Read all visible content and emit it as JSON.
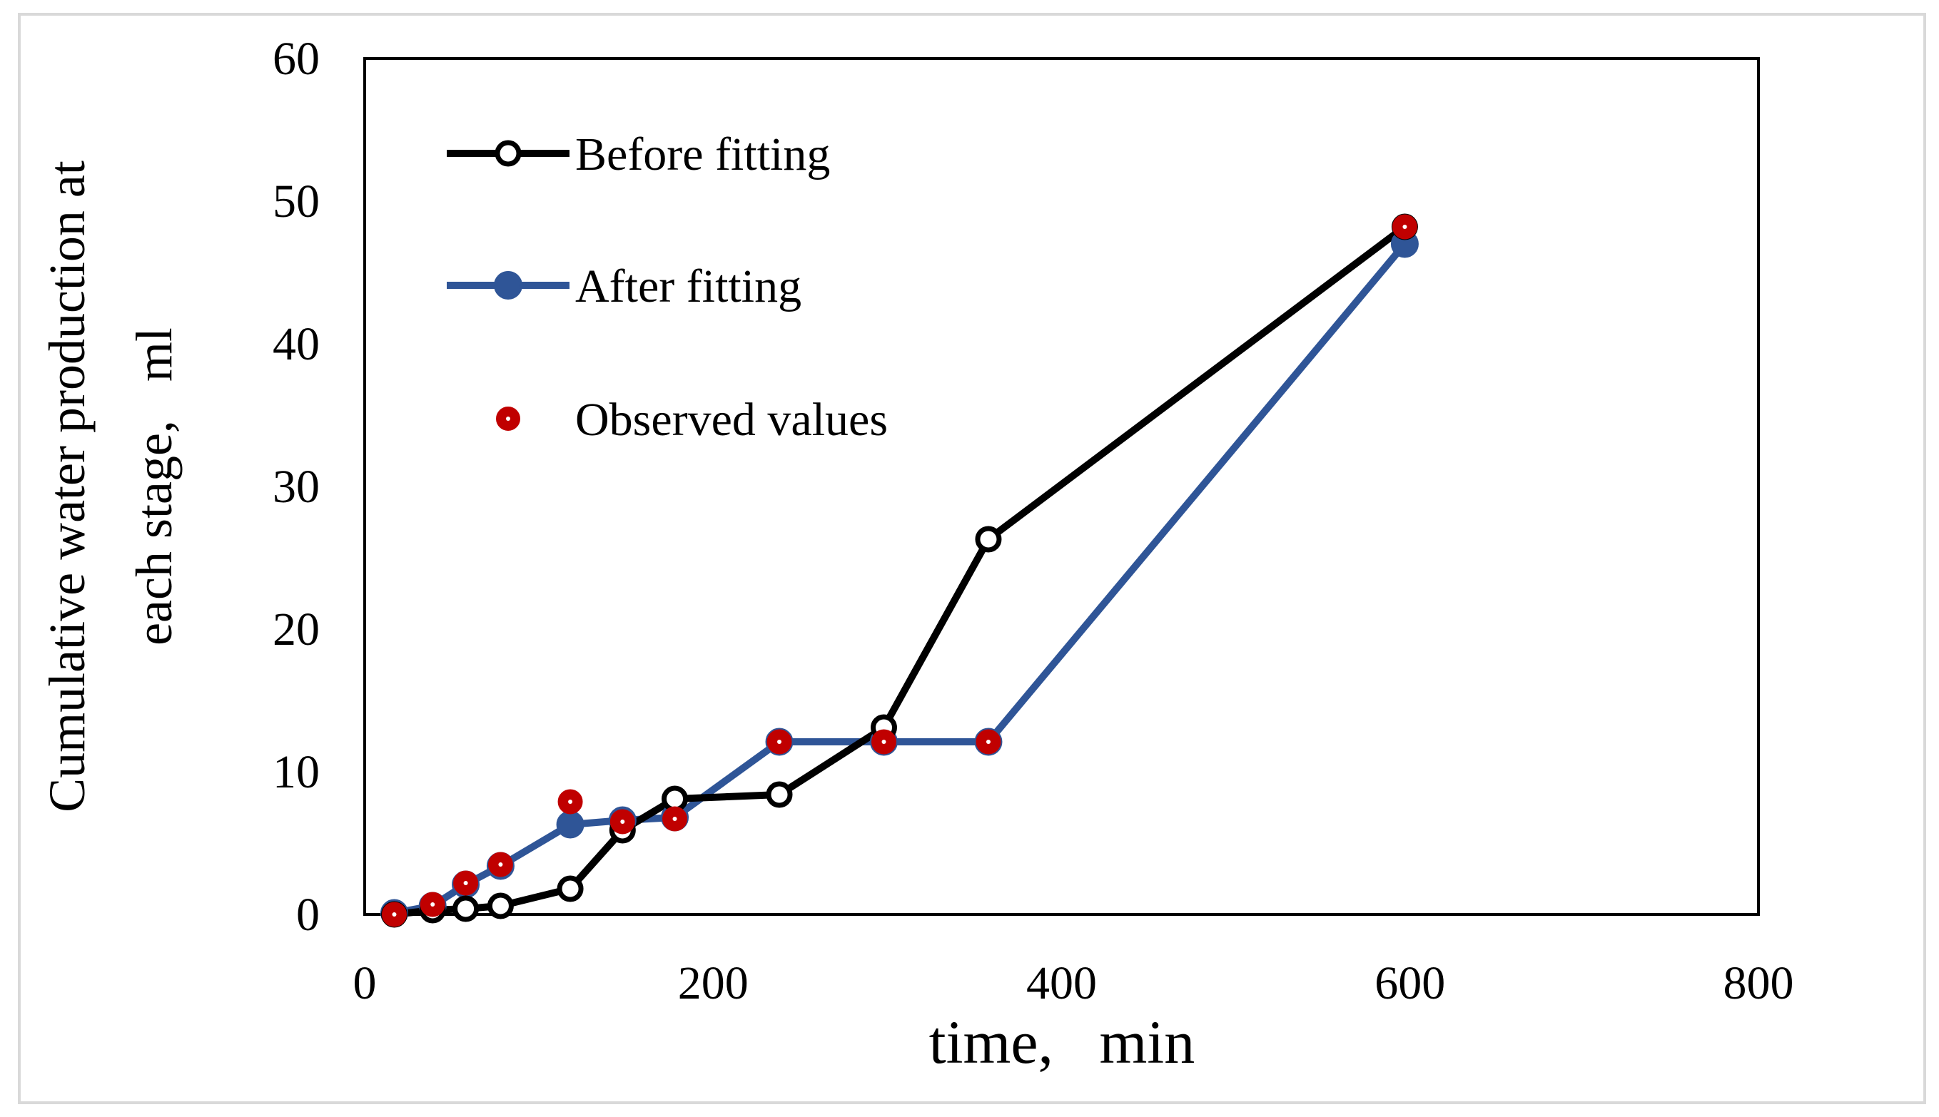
{
  "chart_data": {
    "type": "line",
    "title": "",
    "xlabel": "time,   min",
    "ylabel_lines": [
      "Cumulative water production at",
      "each stage,   ml"
    ],
    "xlim": [
      0,
      800
    ],
    "ylim": [
      0,
      60
    ],
    "xticks": [
      0,
      200,
      400,
      600,
      800
    ],
    "yticks": [
      0,
      10,
      20,
      30,
      40,
      50,
      60
    ],
    "grid": false,
    "legend_position": "top-left",
    "series": [
      {
        "name": "Before fitting",
        "style": "line-open-marker",
        "color": "#000000",
        "x": [
          17,
          39,
          58,
          78,
          118,
          148,
          178,
          238,
          298,
          358,
          597
        ],
        "y": [
          0,
          0.3,
          0.4,
          0.6,
          1.8,
          5.9,
          8.1,
          8.4,
          13.1,
          26.3,
          48.2
        ]
      },
      {
        "name": "After fitting",
        "style": "line-filled-marker",
        "color": "#2f5597",
        "x": [
          17,
          39,
          58,
          78,
          118,
          148,
          178,
          238,
          298,
          358,
          597
        ],
        "y": [
          0.1,
          0.6,
          2.1,
          3.4,
          6.3,
          6.6,
          6.8,
          12.1,
          12.1,
          12.1,
          47.0
        ]
      },
      {
        "name": "Observed values",
        "style": "marker-only",
        "color": "#c00000",
        "x": [
          17,
          39,
          58,
          78,
          118,
          148,
          178,
          238,
          298,
          358,
          597
        ],
        "y": [
          0,
          0.7,
          2.2,
          3.5,
          7.9,
          6.5,
          6.7,
          12.1,
          12.1,
          12.1,
          48.2
        ]
      }
    ]
  }
}
